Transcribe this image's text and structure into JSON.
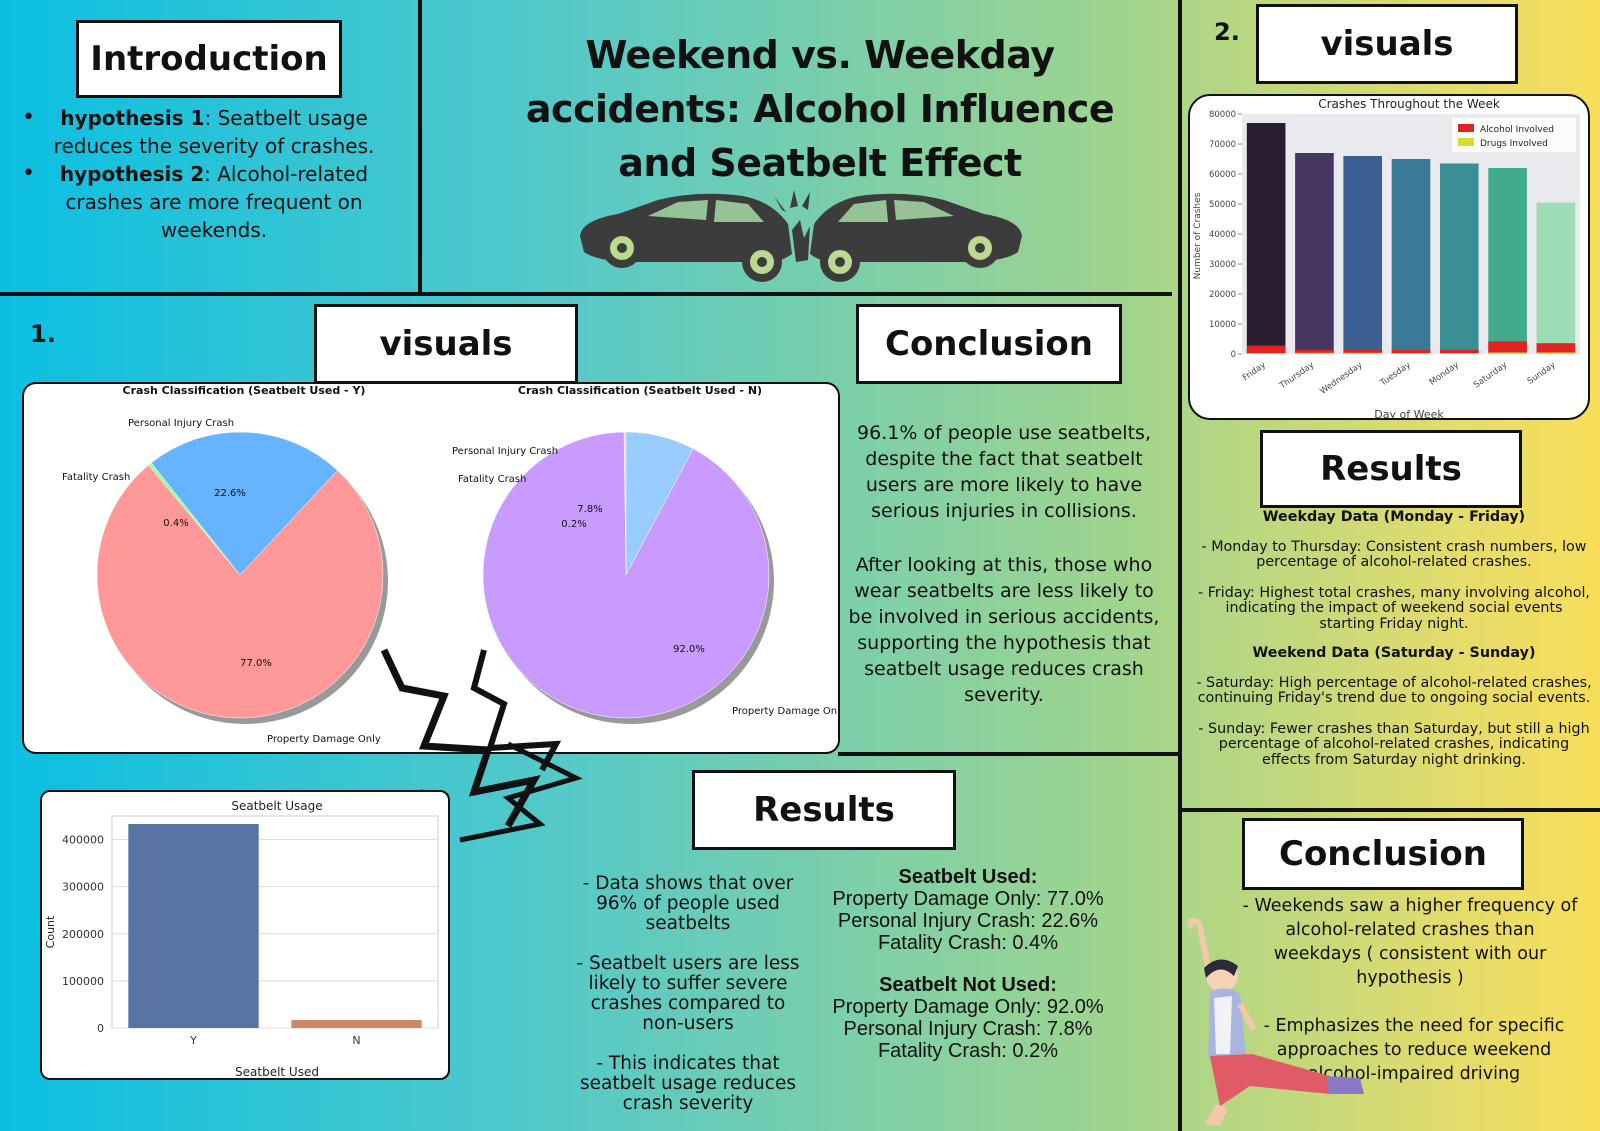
{
  "poster": {
    "title_lines": [
      "Weekend vs. Weekday",
      "accidents: Alcohol Influence",
      "and Seatbelt Effect"
    ],
    "intro": {
      "heading": "Introduction",
      "items": [
        {
          "label": "hypothesis 1",
          "text": ": Seatbelt usage reduces the severity of crashes."
        },
        {
          "label": "hypothesis 2",
          "text": ": Alcohol-related crashes are more frequent on weekends."
        }
      ]
    },
    "section1": {
      "number": "1.",
      "visuals_heading": "visuals",
      "conclusion_heading": "Conclusion",
      "conclusion_p1": "96.1% of people use seatbelts, despite the fact that seatbelt users are more likely to have serious injuries in collisions.",
      "conclusion_p2": "After looking at this, those who wear seatbelts are less likely to be involved in serious accidents, supporting the hypothesis that seatbelt usage reduces crash severity.",
      "results_heading": "Results",
      "results_bullets": [
        "- Data shows that over 96% of people used seatbelts",
        "- Seatbelt users are less likely to suffer severe crashes compared to non-users",
        "- This indicates that seatbelt usage reduces crash severity"
      ],
      "used_heading": "Seatbelt Used:",
      "used_lines": [
        "Property Damage Only: 77.0%",
        "Personal Injury Crash: 22.6%",
        "Fatality Crash: 0.4%"
      ],
      "notused_heading": "Seatbelt Not Used:",
      "notused_lines": [
        "Property Damage Only: 92.0%",
        "Personal Injury Crash: 7.8%",
        "Fatality Crash: 0.2%"
      ]
    },
    "section2": {
      "number": "2.",
      "visuals_heading": "visuals",
      "results_heading": "Results",
      "weekday_heading": "Weekday Data (Monday - Friday)",
      "weekday_p1": "- Monday to Thursday: Consistent crash numbers, low percentage of alcohol-related crashes.",
      "weekday_p2": "- Friday: Highest total crashes, many involving alcohol, indicating the impact of weekend social events starting Friday night.",
      "weekend_heading": "Weekend Data (Saturday - Sunday)",
      "weekend_p1": "- Saturday: High percentage of alcohol-related crashes, continuing Friday's trend due to ongoing social events.",
      "weekend_p2": "- Sunday: Fewer crashes than Saturday, but still a high percentage of alcohol-related crashes, indicating effects from Saturday night drinking.",
      "conclusion_heading": "Conclusion",
      "conclusion_p1": "- Weekends saw a higher frequency of alcohol-related crashes than weekdays ( consistent with our hypothesis )",
      "conclusion_p2": "- Emphasizes the need for specific approaches to reduce weekend alcohol-impaired driving"
    }
  },
  "chart_data": [
    {
      "type": "pie",
      "title": "Crash Classification (Seatbelt Used - Y)",
      "labels": [
        "Property Damage Only",
        "Personal Injury Crash",
        "Fatality Crash"
      ],
      "values": [
        77.0,
        22.6,
        0.4
      ],
      "value_labels": [
        "77.0%",
        "22.6%",
        "0.4%"
      ],
      "colors": [
        "#ff9999",
        "#66b3ff",
        "#99ff99"
      ]
    },
    {
      "type": "pie",
      "title": "Crash Classification (Seatbelt Used - N)",
      "labels": [
        "Property Damage Only",
        "Personal Injury Crash",
        "Fatality Crash"
      ],
      "values": [
        92.0,
        7.8,
        0.2
      ],
      "value_labels": [
        "92.0%",
        "7.8%",
        "0.2%"
      ],
      "colors": [
        "#c99bff",
        "#99ccff",
        "#ffcc99"
      ]
    },
    {
      "type": "bar",
      "title": "Seatbelt Usage",
      "categories": [
        "Y",
        "N"
      ],
      "values": [
        433000,
        17000
      ],
      "xlabel": "Seatbelt Used",
      "ylabel": "Count",
      "ylim": [
        0,
        450000
      ],
      "yticks": [
        0,
        100000,
        200000,
        300000,
        400000
      ],
      "colors": [
        "#5874a3",
        "#cc8a64"
      ],
      "grid": true
    },
    {
      "type": "bar",
      "title": "Crashes Throughout the Week",
      "categories": [
        "Friday",
        "Thursday",
        "Wednesday",
        "Tuesday",
        "Monday",
        "Saturday",
        "Sunday"
      ],
      "series": [
        {
          "name": "",
          "values": [
            77000,
            67000,
            66000,
            65000,
            63500,
            62000,
            50500
          ]
        },
        {
          "name": "Alcohol Involved",
          "values": [
            2800,
            1400,
            1400,
            1400,
            1400,
            4200,
            3600
          ]
        },
        {
          "name": "Drugs Involved",
          "values": [
            300,
            400,
            400,
            300,
            300,
            500,
            500
          ]
        }
      ],
      "bar_colors": [
        "#2a1d32",
        "#45375f",
        "#3b5f90",
        "#3b7a96",
        "#398f94",
        "#41ab8c",
        "#9ddcb4"
      ],
      "series_colors": [
        "",
        "#e32222",
        "#d8dc2a"
      ],
      "xlabel": "Day of Week",
      "ylabel": "Number of Crashes",
      "ylim": [
        0,
        80000
      ],
      "yticks": [
        0,
        10000,
        20000,
        30000,
        40000,
        50000,
        60000,
        70000,
        80000
      ],
      "legend": "top-right",
      "grid": false
    }
  ]
}
